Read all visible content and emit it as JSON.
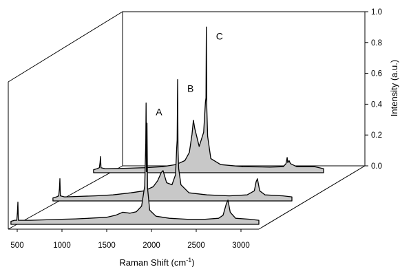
{
  "chart_data": {
    "type": "area",
    "title": "",
    "xlabel": "Raman Shift (cm",
    "xlabel_sup": "-1",
    "xlabel_end": ")",
    "ylabel": "Intensity (a.u.)",
    "xlim": [
      400,
      3200
    ],
    "ylim": [
      0,
      1.0
    ],
    "x_ticks": [
      "500",
      "1000",
      "1500",
      "2000",
      "2500",
      "3000"
    ],
    "y_ticks": [
      "0.0",
      "0.2",
      "0.4",
      "0.6",
      "0.8",
      "1.0"
    ],
    "fill_color": "#c8c8c8",
    "series": [
      {
        "name": "A",
        "points": [
          [
            430,
            0.015
          ],
          [
            470,
            0.02
          ],
          [
            495,
            0.02
          ],
          [
            502,
            0.06
          ],
          [
            508,
            0.11
          ],
          [
            513,
            0.02
          ],
          [
            560,
            0.02
          ],
          [
            650,
            0.02
          ],
          [
            800,
            0.022
          ],
          [
            1000,
            0.025
          ],
          [
            1150,
            0.027
          ],
          [
            1300,
            0.03
          ],
          [
            1500,
            0.035
          ],
          [
            1600,
            0.045
          ],
          [
            1680,
            0.06
          ],
          [
            1760,
            0.055
          ],
          [
            1830,
            0.062
          ],
          [
            1890,
            0.09
          ],
          [
            1925,
            0.19
          ],
          [
            1936,
            0.4
          ],
          [
            1940,
            0.6
          ],
          [
            1944,
            0.26
          ],
          [
            1950,
            0.5
          ],
          [
            1956,
            0.18
          ],
          [
            1980,
            0.07
          ],
          [
            2050,
            0.04
          ],
          [
            2200,
            0.03
          ],
          [
            2400,
            0.025
          ],
          [
            2600,
            0.025
          ],
          [
            2750,
            0.03
          ],
          [
            2800,
            0.045
          ],
          [
            2835,
            0.1
          ],
          [
            2855,
            0.12
          ],
          [
            2880,
            0.06
          ],
          [
            2940,
            0.03
          ],
          [
            3100,
            0.025
          ],
          [
            3200,
            0.02
          ]
        ]
      },
      {
        "name": "B",
        "points": [
          [
            430,
            0.015
          ],
          [
            470,
            0.02
          ],
          [
            495,
            0.025
          ],
          [
            502,
            0.06
          ],
          [
            508,
            0.11
          ],
          [
            513,
            0.025
          ],
          [
            560,
            0.02
          ],
          [
            700,
            0.022
          ],
          [
            900,
            0.025
          ],
          [
            1100,
            0.03
          ],
          [
            1300,
            0.04
          ],
          [
            1450,
            0.05
          ],
          [
            1550,
            0.07
          ],
          [
            1600,
            0.1
          ],
          [
            1640,
            0.14
          ],
          [
            1660,
            0.15
          ],
          [
            1700,
            0.09
          ],
          [
            1760,
            0.08
          ],
          [
            1800,
            0.13
          ],
          [
            1812,
            0.26
          ],
          [
            1818,
            0.3
          ],
          [
            1823,
            0.6
          ],
          [
            1828,
            0.25
          ],
          [
            1835,
            0.16
          ],
          [
            1860,
            0.08
          ],
          [
            1950,
            0.04
          ],
          [
            2150,
            0.03
          ],
          [
            2400,
            0.025
          ],
          [
            2600,
            0.03
          ],
          [
            2680,
            0.05
          ],
          [
            2700,
            0.095
          ],
          [
            2715,
            0.11
          ],
          [
            2740,
            0.05
          ],
          [
            2800,
            0.03
          ],
          [
            3000,
            0.025
          ],
          [
            3100,
            0.02
          ]
        ]
      },
      {
        "name": "C",
        "points": [
          [
            430,
            0.015
          ],
          [
            470,
            0.02
          ],
          [
            495,
            0.025
          ],
          [
            502,
            0.05
          ],
          [
            508,
            0.08
          ],
          [
            513,
            0.025
          ],
          [
            560,
            0.02
          ],
          [
            800,
            0.022
          ],
          [
            1000,
            0.025
          ],
          [
            1200,
            0.03
          ],
          [
            1350,
            0.04
          ],
          [
            1450,
            0.06
          ],
          [
            1500,
            0.1
          ],
          [
            1530,
            0.19
          ],
          [
            1545,
            0.26
          ],
          [
            1560,
            0.22
          ],
          [
            1610,
            0.13
          ],
          [
            1660,
            0.2
          ],
          [
            1680,
            0.35
          ],
          [
            1686,
            0.37
          ],
          [
            1690,
            0.72
          ],
          [
            1695,
            0.32
          ],
          [
            1705,
            0.18
          ],
          [
            1740,
            0.07
          ],
          [
            1850,
            0.04
          ],
          [
            2100,
            0.03
          ],
          [
            2400,
            0.028
          ],
          [
            2550,
            0.03
          ],
          [
            2580,
            0.045
          ],
          [
            2593,
            0.075
          ],
          [
            2600,
            0.05
          ],
          [
            2615,
            0.06
          ],
          [
            2630,
            0.045
          ],
          [
            2700,
            0.03
          ],
          [
            2900,
            0.03
          ],
          [
            3000,
            0.02
          ]
        ]
      }
    ]
  }
}
